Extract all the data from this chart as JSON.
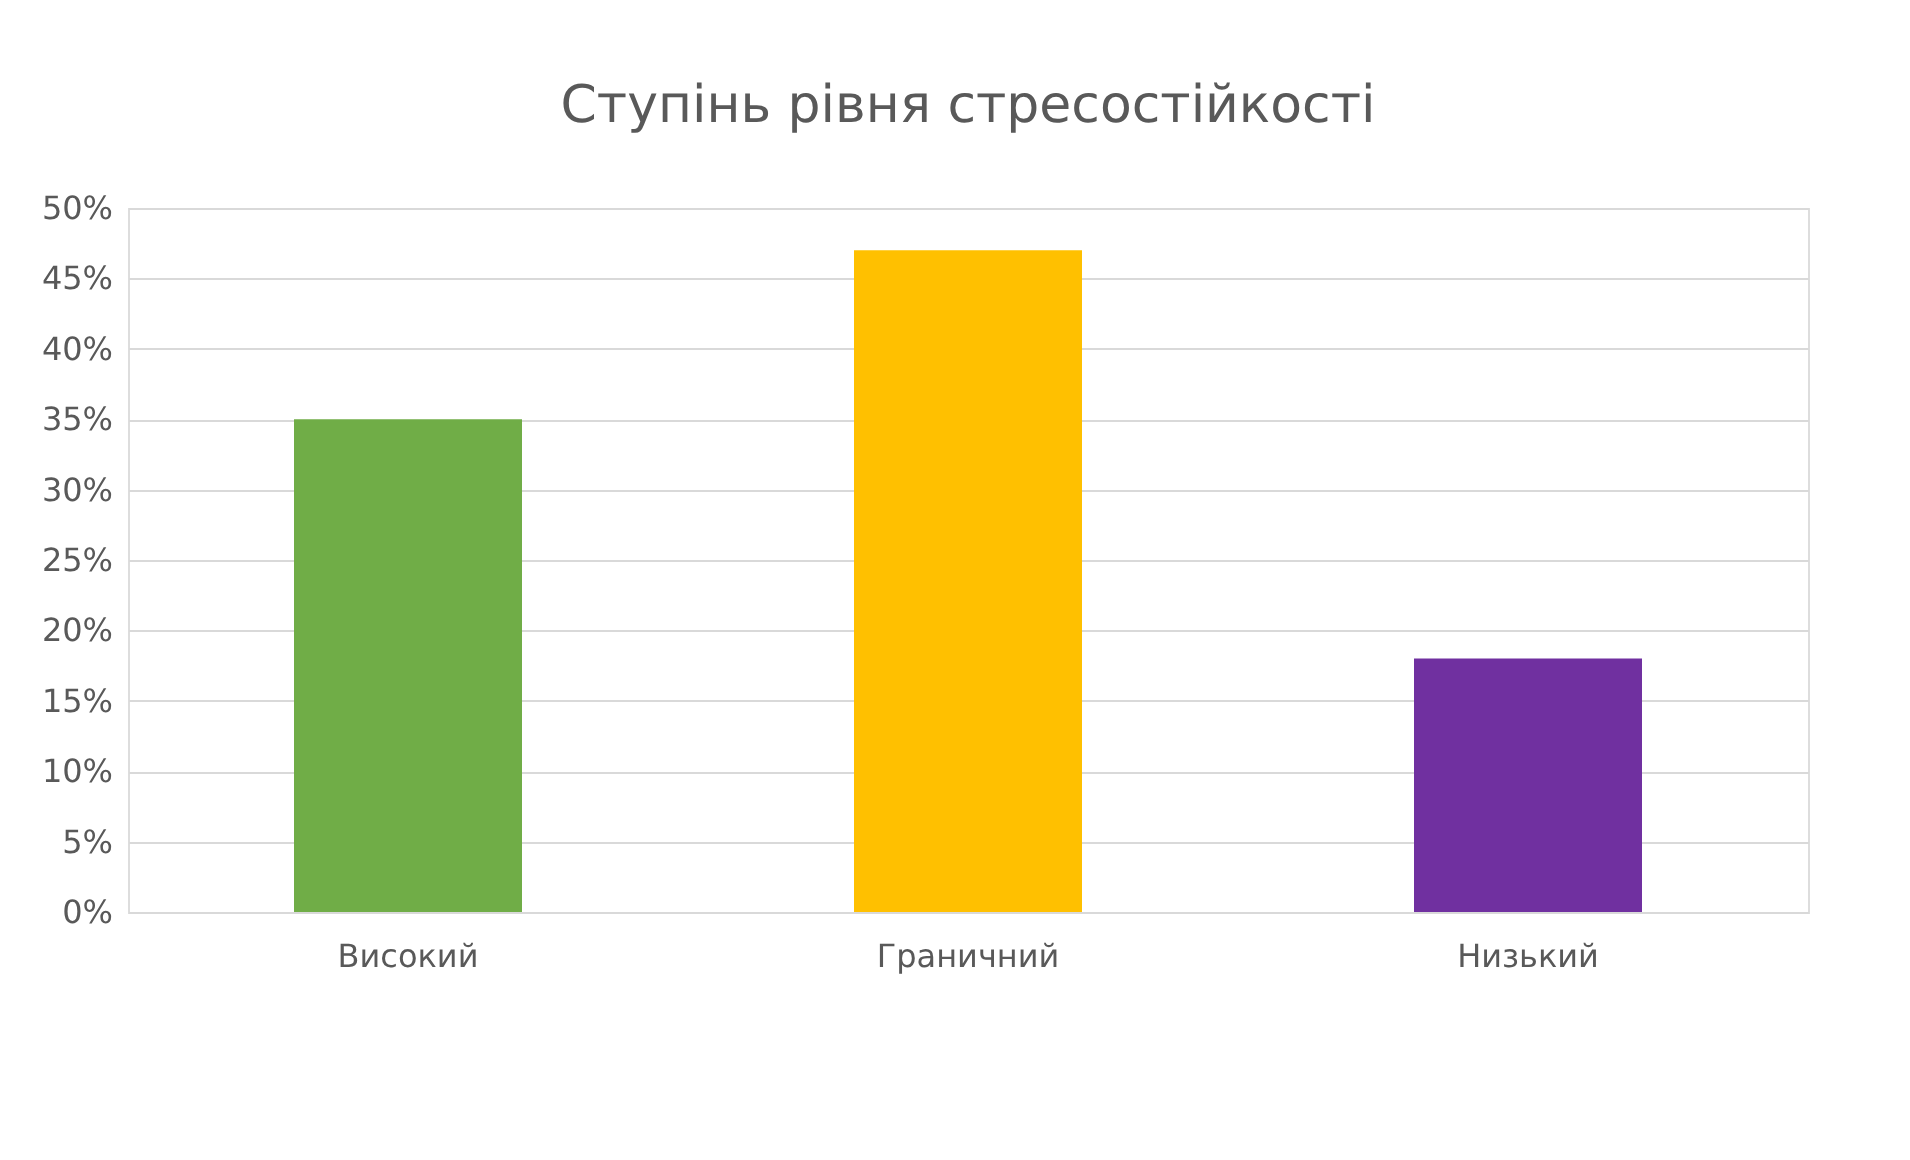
{
  "chart_data": {
    "type": "bar",
    "title": "Ступінь рівня стресостійкості",
    "categories": [
      "Високий",
      "Граничний",
      "Низький"
    ],
    "values": [
      35,
      47,
      18
    ],
    "colors": [
      "#70ad47",
      "#ffc000",
      "#7030a0"
    ],
    "ylim": [
      0,
      50
    ],
    "yticks": [
      {
        "value": 0,
        "label": "0%"
      },
      {
        "value": 5,
        "label": "5%"
      },
      {
        "value": 10,
        "label": "10%"
      },
      {
        "value": 15,
        "label": "15%"
      },
      {
        "value": 20,
        "label": "20%"
      },
      {
        "value": 25,
        "label": "25%"
      },
      {
        "value": 30,
        "label": "30%"
      },
      {
        "value": 35,
        "label": "35%"
      },
      {
        "value": 40,
        "label": "40%"
      },
      {
        "value": 45,
        "label": "45%"
      },
      {
        "value": 50,
        "label": "50%"
      }
    ],
    "grid": "y",
    "legend": false
  }
}
